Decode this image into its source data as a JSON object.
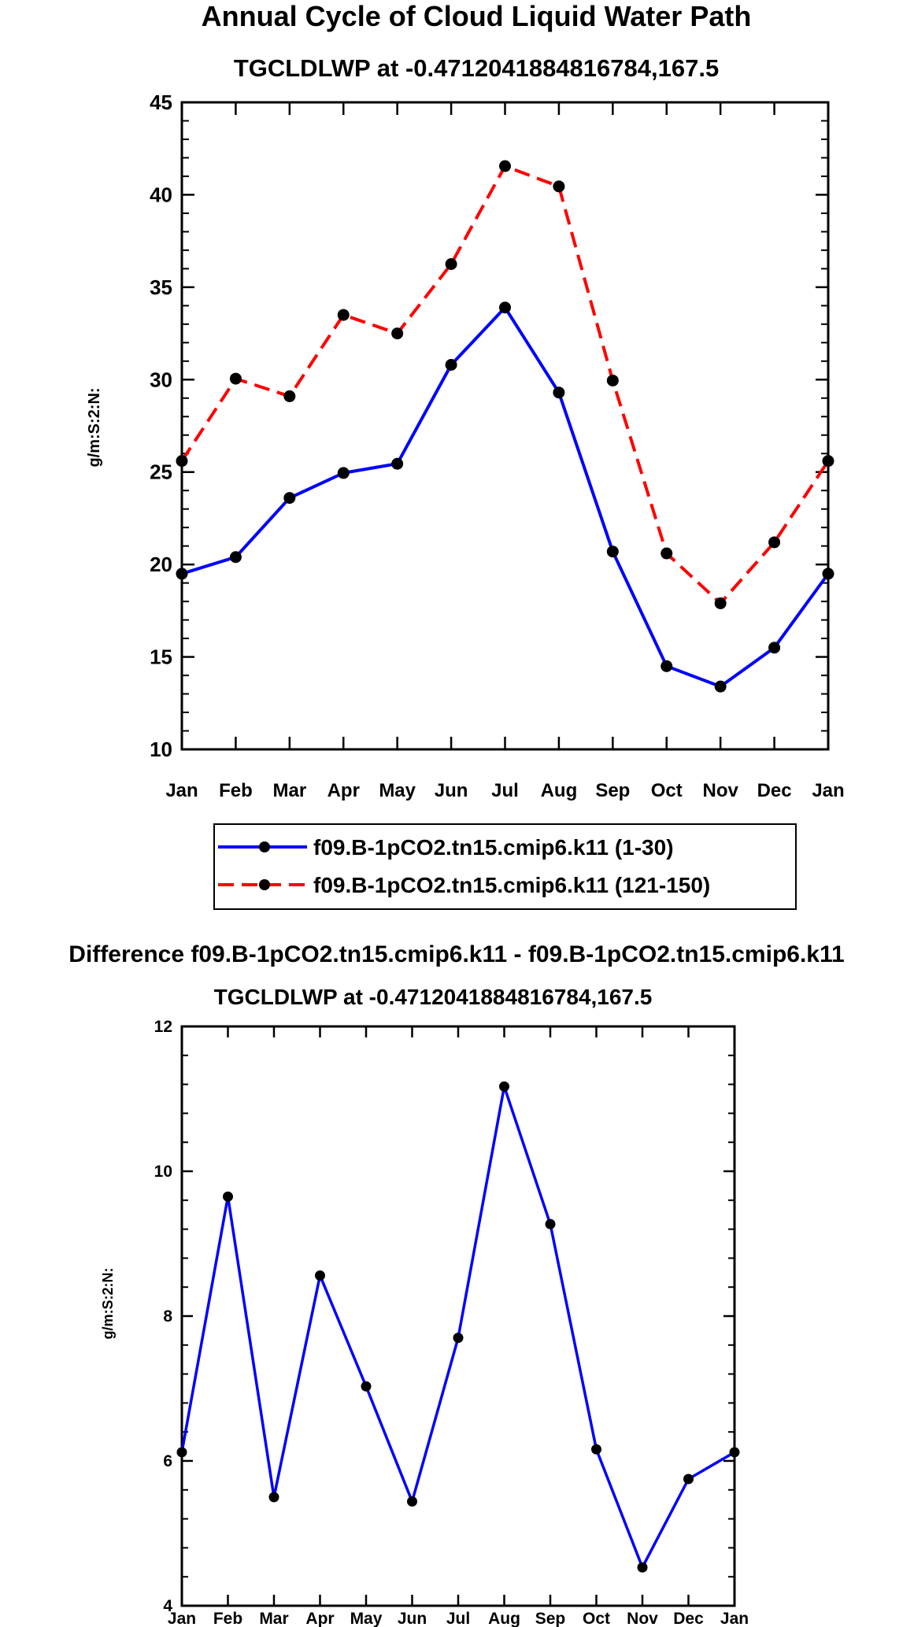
{
  "chart_data": [
    {
      "type": "line",
      "title": "Annual Cycle of Cloud Liquid Water Path",
      "subtitle": "TGCLDLWP at -0.4712041884816784,167.5",
      "xlabel": "",
      "ylabel": "g/m:S:2:N:",
      "ylim": [
        10,
        45
      ],
      "yticks": [
        10,
        15,
        20,
        25,
        30,
        35,
        40,
        45
      ],
      "categories": [
        "Jan",
        "Feb",
        "Mar",
        "Apr",
        "May",
        "Jun",
        "Jul",
        "Aug",
        "Sep",
        "Oct",
        "Nov",
        "Dec",
        "Jan"
      ],
      "series": [
        {
          "name": "f09.B-1pCO2.tn15.cmip6.k11 (1-30)",
          "color": "#0000ff",
          "dash": "solid",
          "values": [
            19.5,
            20.4,
            23.6,
            24.95,
            25.45,
            30.8,
            33.9,
            29.3,
            20.7,
            14.5,
            13.4,
            15.5,
            19.5
          ]
        },
        {
          "name": "f09.B-1pCO2.tn15.cmip6.k11 (121-150)",
          "color": "#ff0000",
          "dash": "dashed",
          "values": [
            25.6,
            30.05,
            29.1,
            33.5,
            32.5,
            36.25,
            41.55,
            40.45,
            29.95,
            20.6,
            17.9,
            21.2,
            25.6
          ]
        }
      ],
      "legend": {
        "placement": "bottom",
        "entries": [
          "f09.B-1pCO2.tn15.cmip6.k11 (1-30)",
          "f09.B-1pCO2.tn15.cmip6.k11 (121-150)"
        ]
      }
    },
    {
      "type": "line",
      "title": "Difference f09.B-1pCO2.tn15.cmip6.k11 - f09.B-1pCO2.tn15.cmip6.k11",
      "subtitle": "TGCLDLWP at -0.4712041884816784,167.5",
      "xlabel": "",
      "ylabel": "g/m:S:2:N:",
      "ylim": [
        4,
        12
      ],
      "yticks": [
        4,
        6,
        8,
        10,
        12
      ],
      "categories": [
        "Jan",
        "Feb",
        "Mar",
        "Apr",
        "May",
        "Jun",
        "Jul",
        "Aug",
        "Sep",
        "Oct",
        "Nov",
        "Dec",
        "Jan"
      ],
      "series": [
        {
          "name": "Difference",
          "color": "#0000ff",
          "dash": "solid",
          "values": [
            6.12,
            9.65,
            5.5,
            8.56,
            7.03,
            5.44,
            7.7,
            11.17,
            9.27,
            6.16,
            4.53,
            5.75,
            6.12
          ]
        }
      ]
    }
  ]
}
